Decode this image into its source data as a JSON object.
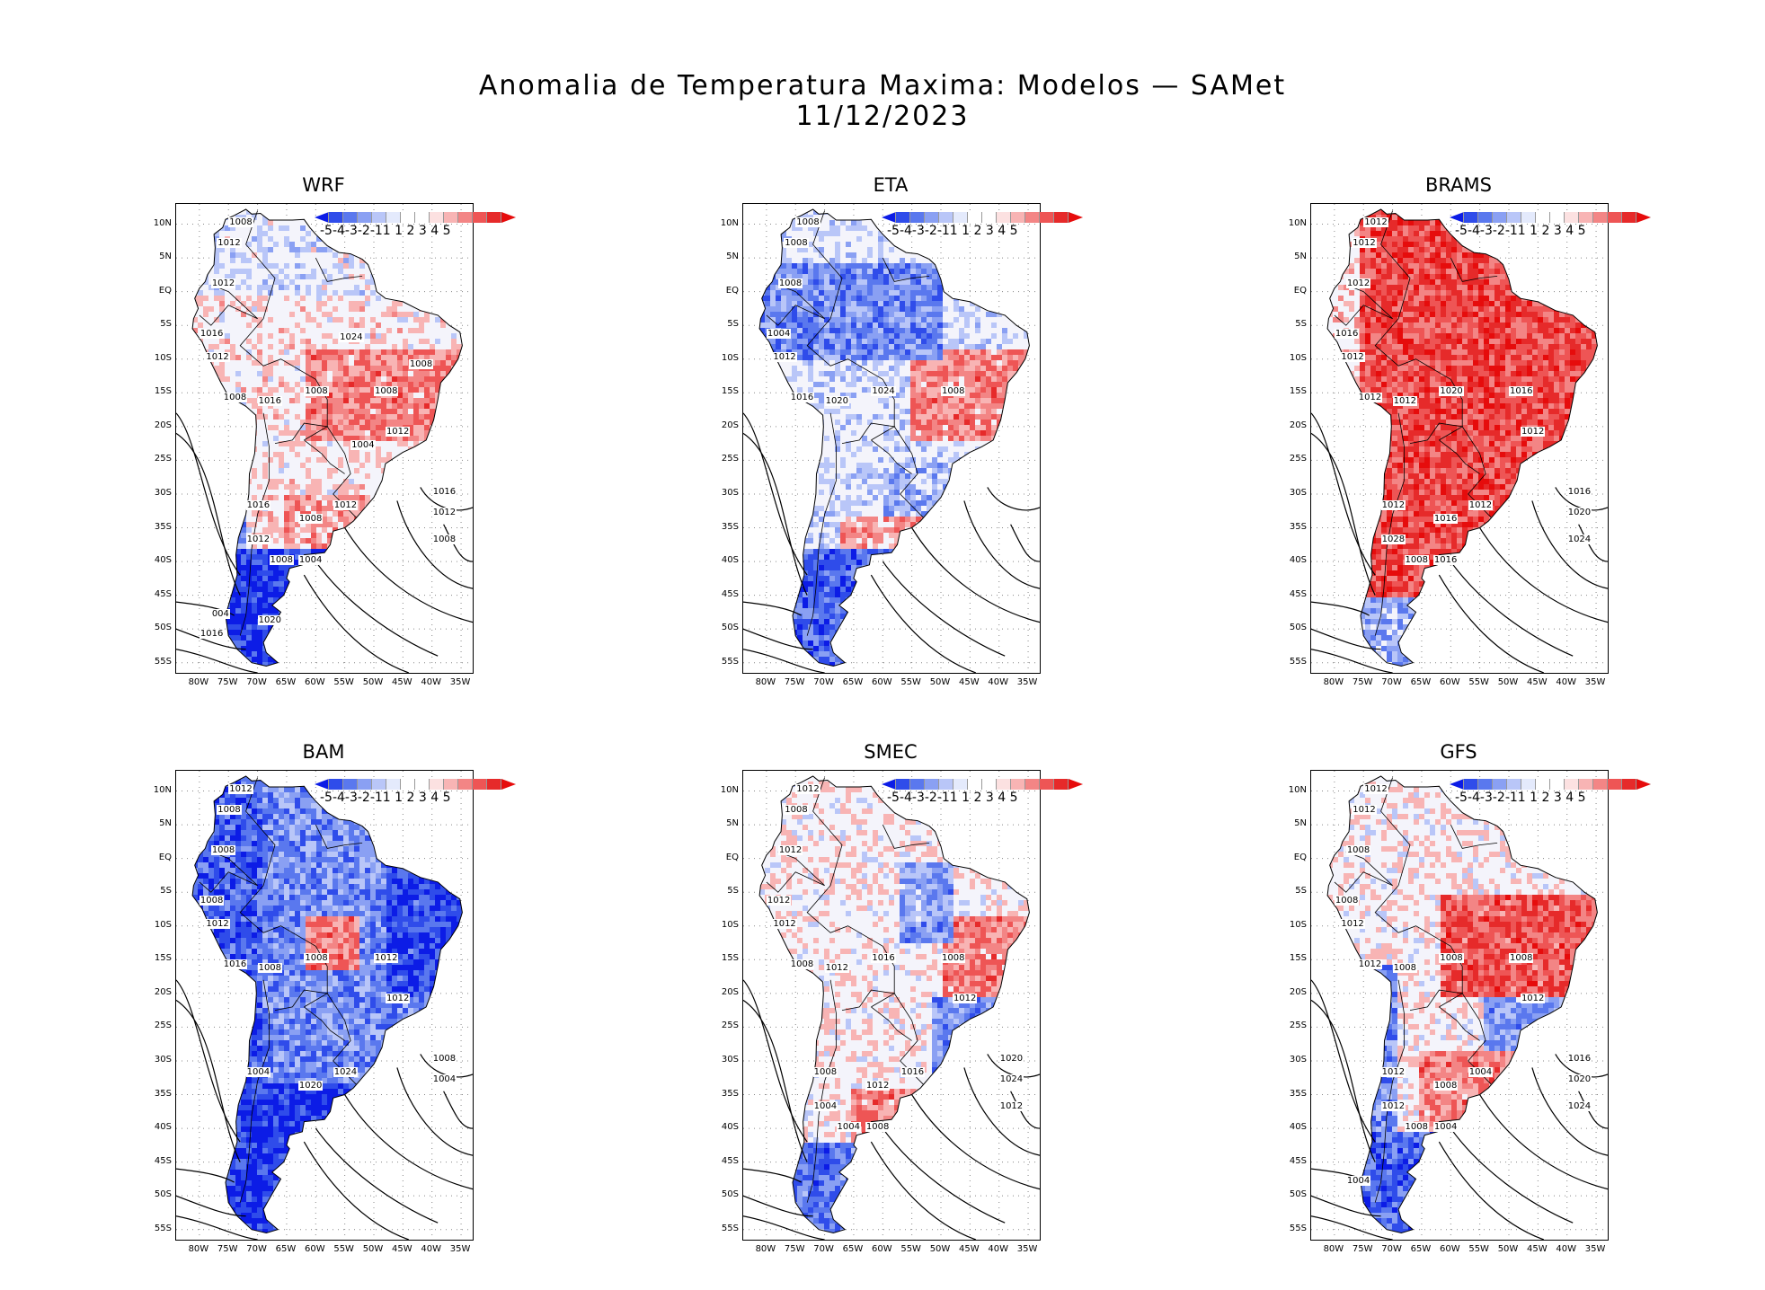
{
  "figure": {
    "title_line1": "Anomalia de Temperatura Maxima: Modelos — SAMet",
    "title_line2": "11/12/2023"
  },
  "axes": {
    "lat_labels": [
      "10N",
      "5N",
      "EQ",
      "5S",
      "10S",
      "15S",
      "20S",
      "25S",
      "30S",
      "35S",
      "40S",
      "45S",
      "50S",
      "55S"
    ],
    "lon_labels": [
      "80W",
      "75W",
      "70W",
      "65W",
      "60W",
      "55W",
      "50W",
      "45W",
      "40W",
      "35W"
    ]
  },
  "legend": {
    "labels": "-5-4-3-2-11 1 2 3 4 5",
    "colors": [
      "#0c1ce6",
      "#2f4cea",
      "#5a78ee",
      "#8aa0f3",
      "#b9c6f8",
      "#e4eafc",
      "#ffffff",
      "#ffffff",
      "#fce1e1",
      "#f8b4b4",
      "#f38585",
      "#ee5555",
      "#e62a2a",
      "#e60c0c"
    ]
  },
  "panels": [
    {
      "name": "WRF",
      "isobars": [
        "1008",
        "1012",
        "1012",
        "1016",
        "1012",
        "1008",
        "1016",
        "1008",
        "1008",
        "1012",
        "1016",
        "1008",
        "1012",
        "1016",
        "1012",
        "1008",
        "1012",
        "1008",
        "1004",
        "004",
        "1016",
        "1020",
        "1024",
        "1008",
        "1004"
      ]
    },
    {
      "name": "ETA",
      "isobars": [
        "1008",
        "1008",
        "1008",
        "1004",
        "1012",
        "1016",
        "1020",
        "1024",
        "1008"
      ]
    },
    {
      "name": "BRAMS",
      "isobars": [
        "1012",
        "1012",
        "1012",
        "1016",
        "1012",
        "1012",
        "1012",
        "1020",
        "1016",
        "1012",
        "1012",
        "1016",
        "1012",
        "1016",
        "1020",
        "1024",
        "1028",
        "1008",
        "1016"
      ]
    },
    {
      "name": "BAM",
      "isobars": [
        "1012",
        "1008",
        "1008",
        "1008",
        "1012",
        "1016",
        "1008",
        "1008",
        "1012",
        "1012",
        "1004",
        "1020",
        "1024",
        "1008",
        "1004"
      ]
    },
    {
      "name": "SMEC",
      "isobars": [
        "1012",
        "1008",
        "1012",
        "1012",
        "1012",
        "1008",
        "1012",
        "1016",
        "1008",
        "1012",
        "1008",
        "1012",
        "1016",
        "1020",
        "1024",
        "1012",
        "1004",
        "1004",
        "1008"
      ]
    },
    {
      "name": "GFS",
      "isobars": [
        "1012",
        "1012",
        "1008",
        "1008",
        "1012",
        "1012",
        "1008",
        "1008",
        "1008",
        "1012",
        "1012",
        "1008",
        "1004",
        "1016",
        "1020",
        "1024",
        "1012",
        "1008",
        "1004",
        "1004"
      ]
    }
  ]
}
